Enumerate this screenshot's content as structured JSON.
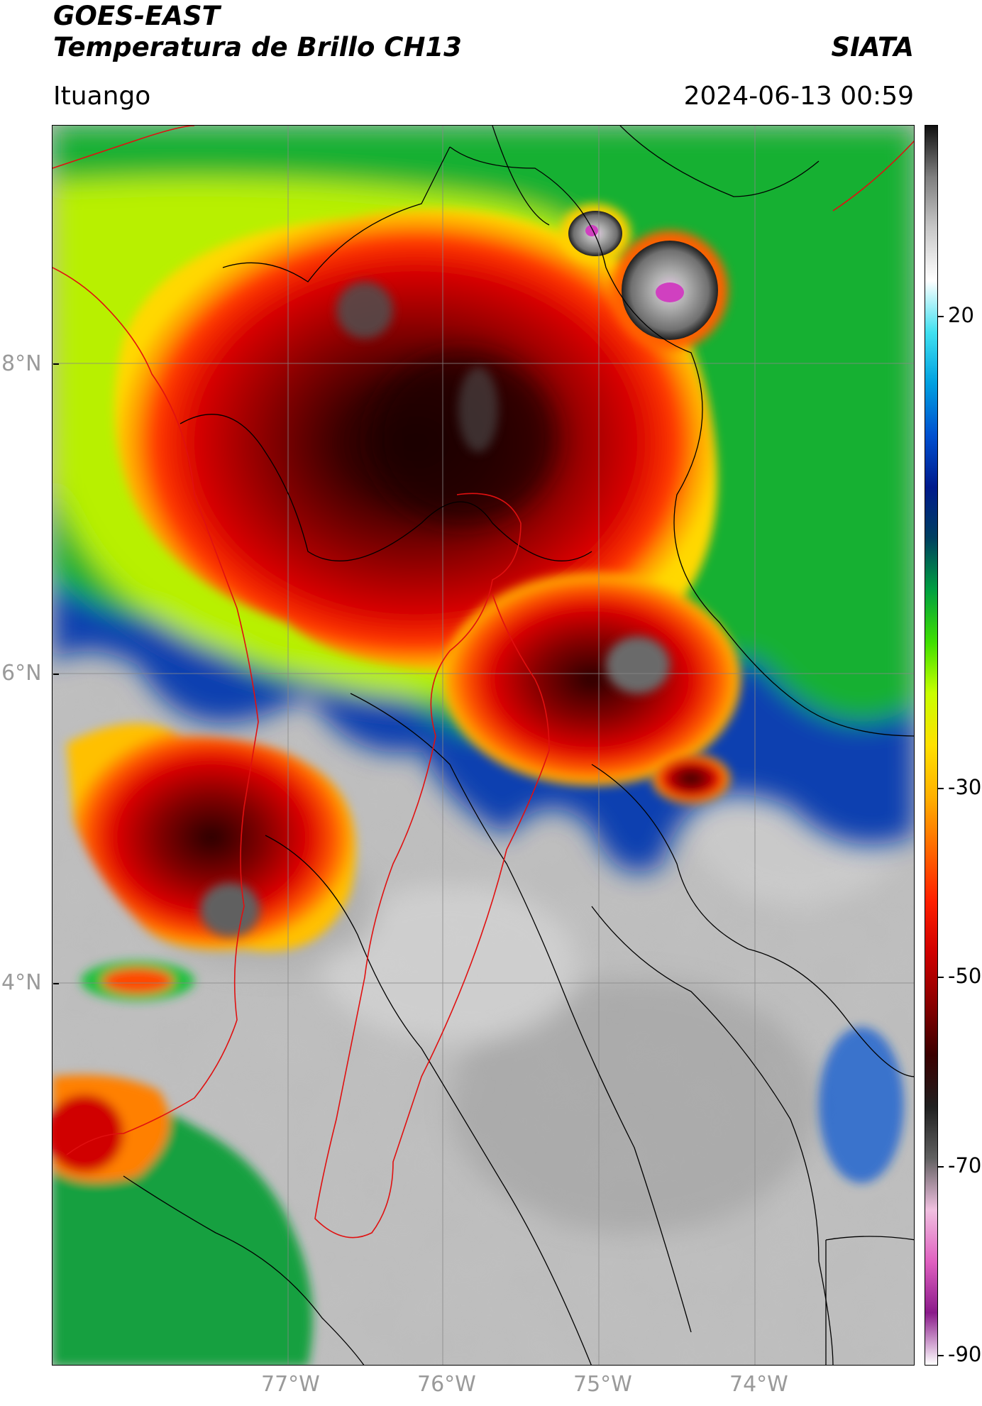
{
  "header": {
    "title_line1": "GOES-EAST",
    "title_line2": "Temperatura de Brillo CH13",
    "organization": "SIATA",
    "location": "Ituango",
    "timestamp": "2024-06-13 00:59"
  },
  "map": {
    "lat_labels": [
      "8°N",
      "6°N",
      "4°N"
    ],
    "lon_labels": [
      "77°W",
      "76°W",
      "75°W",
      "74°W"
    ],
    "extent": {
      "lon_min": -78.5,
      "lon_max": -73.0,
      "lat_min": 2.2,
      "lat_max": 9.0
    },
    "gridlines": true,
    "clouds": [
      {
        "id": "north-mcs",
        "lon": -75.9,
        "lat": 7.75,
        "kind": "deep"
      },
      {
        "id": "east-mcs",
        "lon": -74.95,
        "lat": 5.95,
        "kind": "deep"
      },
      {
        "id": "west-mcs",
        "lon": -77.4,
        "lat": 4.85,
        "kind": "deep"
      },
      {
        "id": "overshoot-north-1",
        "lon": -75.0,
        "lat": 8.82,
        "kind": "overshoot"
      },
      {
        "id": "overshoot-north-2",
        "lon": -74.55,
        "lat": 8.4,
        "kind": "overshoot"
      }
    ]
  },
  "colorbar": {
    "labels": [
      "20",
      "-30",
      "-50",
      "-70",
      "-90"
    ],
    "colors": [
      "#ffffff",
      "#8a1a8a",
      "#e060c0",
      "#f0c0e0",
      "#606060",
      "#202020",
      "#3a0000",
      "#8b0000",
      "#d00000",
      "#ff2000",
      "#ff6a00",
      "#ffb000",
      "#ffe000",
      "#c8ff00",
      "#40e000",
      "#00a040",
      "#004060",
      "#001a8c",
      "#0050d0",
      "#00a0e0",
      "#40e0f0",
      "#ffffff",
      "#c8c8c8",
      "#808080",
      "#101010"
    ]
  }
}
